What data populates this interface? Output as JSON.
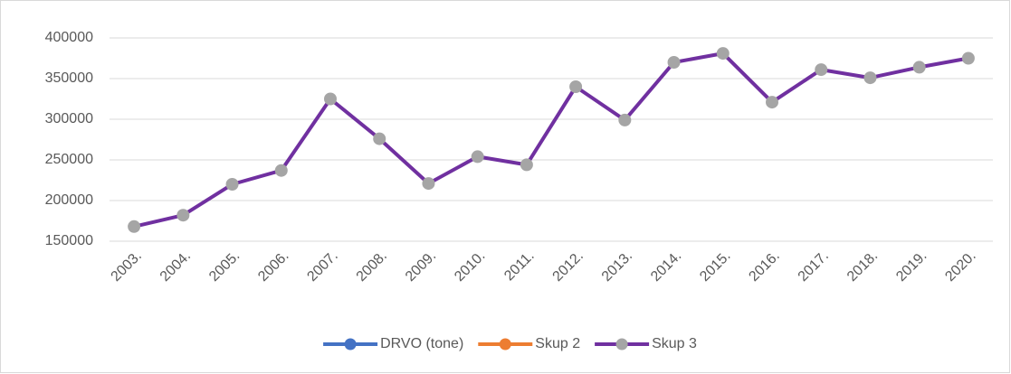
{
  "chart_data": {
    "type": "line",
    "categories": [
      "2003.",
      "2004.",
      "2005.",
      "2006.",
      "2007.",
      "2008.",
      "2009.",
      "2010.",
      "2011.",
      "2012.",
      "2013.",
      "2014.",
      "2015.",
      "2016.",
      "2017.",
      "2018.",
      "2019.",
      "2020."
    ],
    "series": [
      {
        "name": "DRVO (tone)",
        "color": "#4472c4",
        "marker_color": "#4472c4",
        "values": [
          null,
          null,
          null,
          null,
          null,
          null,
          null,
          null,
          null,
          null,
          null,
          null,
          null,
          null,
          null,
          null,
          null,
          null
        ]
      },
      {
        "name": "Skup 2",
        "color": "#ed7d31",
        "marker_color": "#ed7d31",
        "values": [
          null,
          null,
          null,
          null,
          null,
          null,
          null,
          null,
          null,
          null,
          null,
          null,
          null,
          null,
          null,
          null,
          null,
          null
        ]
      },
      {
        "name": "Skup 3",
        "color": "#7030a0",
        "marker_color": "#a5a5a5",
        "values": [
          168000,
          182000,
          220000,
          237000,
          325000,
          276000,
          221000,
          254000,
          244000,
          340000,
          299000,
          370000,
          381000,
          321000,
          361000,
          351000,
          364000,
          375000
        ]
      }
    ],
    "ylim": [
      150000,
      400000
    ],
    "yticks": [
      150000,
      200000,
      250000,
      300000,
      350000,
      400000
    ],
    "grid": true,
    "legend": "bottom"
  }
}
